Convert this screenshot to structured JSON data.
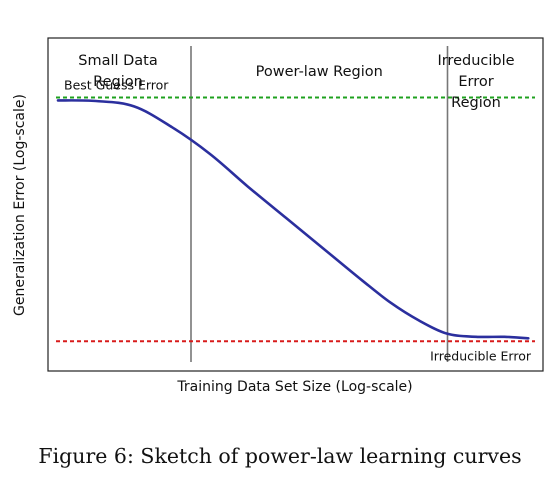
{
  "caption": "Figure 6: Sketch of power-law learning curves",
  "chart_data": {
    "type": "line",
    "title": "",
    "xlabel": "Training Data Set Size (Log-scale)",
    "ylabel": "Generalization Error (Log-scale)",
    "x_scale": "log",
    "y_scale": "log",
    "grid": false,
    "series": [
      {
        "values": [
          [
            0.0,
            0.79
          ],
          [
            0.08,
            0.788
          ],
          [
            0.16,
            0.77
          ],
          [
            0.24,
            0.7
          ],
          [
            0.32,
            0.61
          ],
          [
            0.4,
            0.5
          ],
          [
            0.48,
            0.395
          ],
          [
            0.56,
            0.29
          ],
          [
            0.64,
            0.185
          ],
          [
            0.7,
            0.11
          ],
          [
            0.76,
            0.05
          ],
          [
            0.82,
            0.005
          ],
          [
            0.88,
            -0.005
          ],
          [
            0.94,
            -0.005
          ],
          [
            0.99,
            -0.01
          ]
        ],
        "color": "#2b2f9e"
      }
    ],
    "reference_lines": [
      {
        "label": "Best Guess Error",
        "y": 0.8,
        "color": "#1fa11f",
        "style": "dashed"
      },
      {
        "label": "Irreducible Error",
        "y": -0.02,
        "color": "#d81b1b",
        "style": "dashed"
      }
    ],
    "region_boundaries_x": [
      0.28,
      0.82
    ],
    "regions": [
      {
        "label_lines": [
          "Small Data",
          "Region"
        ]
      },
      {
        "label_lines": [
          "Power-law Region"
        ]
      },
      {
        "label_lines": [
          "Irreducible",
          "Error",
          "Region"
        ]
      }
    ],
    "xlim": [
      0,
      1
    ],
    "ylim": [
      -0.12,
      1.0
    ]
  }
}
